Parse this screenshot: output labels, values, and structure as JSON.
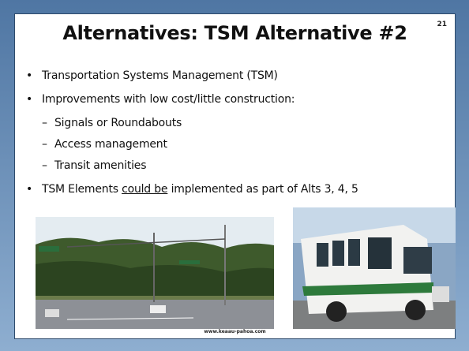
{
  "slide": {
    "number": "21",
    "title": "Alternatives: TSM Alternative #2",
    "bullets": [
      "Transportation Systems Management (TSM)",
      "Improvements with low cost/little construction:"
    ],
    "sub_bullets": [
      "Signals or Roundabouts",
      "Access management",
      "Transit amenities"
    ],
    "final_bullet": {
      "before": "TSM Elements ",
      "underlined": "could be",
      "after": " implemented as part of Alts 3, 4, 5"
    },
    "caption": "www.keaau-pahoa.com"
  }
}
